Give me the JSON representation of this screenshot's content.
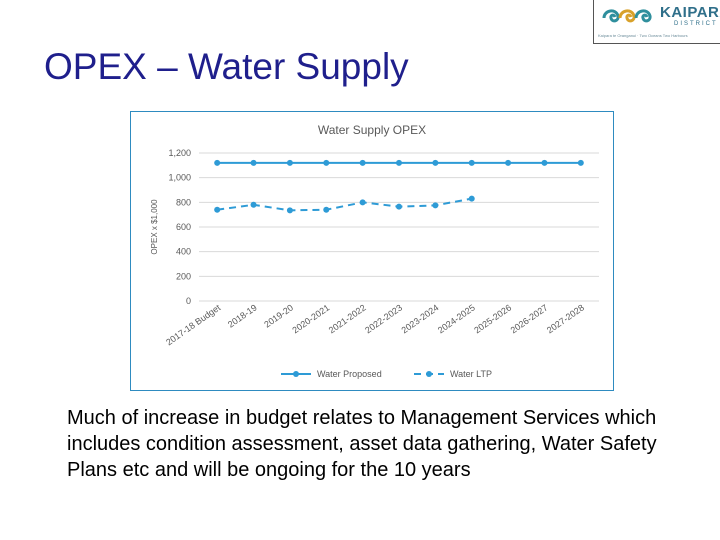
{
  "slide": {
    "title": "OPEX – Water Supply",
    "body": "Much of increase in budget relates to Management Services which includes condition assessment, asset data gathering, Water Safety Plans etc and will be ongoing for the 10 years"
  },
  "logo": {
    "name": "KAIPARA",
    "subtitle": "DISTRICT",
    "tagline": "Kaipara te Oranganui · Two Oceans Two Harbours",
    "colors": {
      "teal": "#2f8f9d",
      "gold": "#d8a12a",
      "navy": "#2f6f8a"
    }
  },
  "colors": {
    "title": "#1f1f8c",
    "series_line": "#2e9bd6",
    "grid": "#d9d9d9",
    "frame": "#2e8bc0",
    "axis_text": "#595959"
  },
  "chart_data": {
    "type": "line",
    "title": "Water Supply OPEX",
    "xlabel": "",
    "ylabel": "OPEX x $1,000",
    "ylim": [
      0,
      1200
    ],
    "yticks": [
      0,
      200,
      400,
      600,
      800,
      1000,
      1200
    ],
    "ytick_labels": [
      "0",
      "200",
      "400",
      "600",
      "800",
      "1,000",
      "1,200"
    ],
    "grid": true,
    "legend_position": "bottom",
    "categories": [
      "2017-18 Budget",
      "2018-19",
      "2019-20",
      "2020-2021",
      "2021-2022",
      "2022-2023",
      "2023-2024",
      "2024-2025",
      "2025-2026",
      "2026-2027",
      "2027-2028"
    ],
    "series": [
      {
        "name": "Water Proposed",
        "style": "solid",
        "values": [
          1120,
          1120,
          1120,
          1120,
          1120,
          1120,
          1120,
          1120,
          1120,
          1120,
          1120
        ]
      },
      {
        "name": "Water LTP",
        "style": "dashed",
        "values": [
          740,
          780,
          735,
          740,
          800,
          765,
          775,
          830,
          null,
          null,
          null
        ]
      }
    ]
  }
}
